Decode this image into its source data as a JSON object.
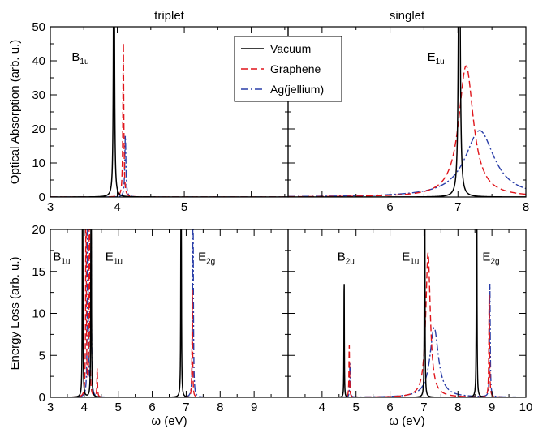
{
  "chart_data": [
    {
      "type": "line",
      "panel": "top-left",
      "title": "triplet",
      "ylabel": "Optical Absorption (arb. u.)",
      "xlim": [
        3,
        6.55
      ],
      "ylim": [
        0,
        50
      ],
      "xticks": [
        3,
        4,
        5
      ],
      "yticks": [
        0,
        10,
        20,
        30,
        40,
        50
      ],
      "annotations": [
        {
          "main": "B",
          "sub": "1u",
          "x": 3.32,
          "y": 40
        }
      ],
      "series": [
        {
          "name": "Vacuum",
          "peaks": [
            {
              "x0": 3.95,
              "amp": 120,
              "w": 0.007
            }
          ]
        },
        {
          "name": "Graphene",
          "peaks": [
            {
              "x0": 4.09,
              "amp": 46,
              "w": 0.008
            }
          ]
        },
        {
          "name": "Ag(jellium)",
          "peaks": [
            {
              "x0": 4.12,
              "amp": 18,
              "w": 0.01
            }
          ]
        }
      ]
    },
    {
      "type": "line",
      "panel": "top-right",
      "title": "singlet",
      "xlim": [
        4.5,
        8
      ],
      "ylim": [
        0,
        50
      ],
      "xticks": [
        6,
        7,
        8
      ],
      "yticks": [
        0,
        10,
        20,
        30,
        40,
        50
      ],
      "annotations": [
        {
          "main": "E",
          "sub": "1u",
          "x": 6.55,
          "y": 40
        }
      ],
      "series": [
        {
          "name": "Vacuum",
          "peaks": [
            {
              "x0": 7.02,
              "amp": 120,
              "w": 0.012
            }
          ]
        },
        {
          "name": "Graphene",
          "peaks": [
            {
              "x0": 7.12,
              "amp": 38.5,
              "w": 0.13
            }
          ]
        },
        {
          "name": "Ag(jellium)",
          "peaks": [
            {
              "x0": 7.32,
              "amp": 19.5,
              "w": 0.26
            }
          ]
        }
      ]
    },
    {
      "type": "line",
      "panel": "bottom-left",
      "ylabel": "Energy Loss (arb. u.)",
      "xlabel": "ω (eV)",
      "xlim": [
        3,
        10
      ],
      "ylim": [
        0,
        20
      ],
      "xticks": [
        3,
        4,
        5,
        6,
        7,
        8,
        9
      ],
      "yticks": [
        0,
        5,
        10,
        15,
        20
      ],
      "annotations": [
        {
          "main": "B",
          "sub": "1u",
          "x": 3.08,
          "y": 16.3
        },
        {
          "main": "E",
          "sub": "1u",
          "x": 4.62,
          "y": 16.3
        },
        {
          "main": "E",
          "sub": "2g",
          "x": 7.35,
          "y": 16.3
        }
      ],
      "series": [
        {
          "name": "Vacuum",
          "peaks": [
            {
              "x0": 3.95,
              "amp": 60,
              "w": 0.006
            },
            {
              "x0": 4.2,
              "amp": 60,
              "w": 0.006
            },
            {
              "x0": 6.85,
              "amp": 60,
              "w": 0.006
            }
          ]
        },
        {
          "name": "Graphene",
          "peaks": [
            {
              "x0": 4.05,
              "amp": 30,
              "w": 0.01
            },
            {
              "x0": 4.15,
              "amp": 30,
              "w": 0.01
            },
            {
              "x0": 4.38,
              "amp": 3.4,
              "w": 0.01
            },
            {
              "x0": 7.18,
              "amp": 13,
              "w": 0.01
            }
          ]
        },
        {
          "name": "Ag(jellium)",
          "peaks": [
            {
              "x0": 4.1,
              "amp": 28,
              "w": 0.012
            },
            {
              "x0": 4.2,
              "amp": 20,
              "w": 0.012
            },
            {
              "x0": 7.2,
              "amp": 25,
              "w": 0.012
            }
          ]
        }
      ]
    },
    {
      "type": "line",
      "panel": "bottom-right",
      "xlabel": "ω (eV)",
      "xlim": [
        3,
        10
      ],
      "ylim": [
        0,
        20
      ],
      "xticks": [
        4,
        5,
        6,
        7,
        8,
        9,
        10
      ],
      "yticks": [
        0,
        5,
        10,
        15,
        20
      ],
      "annotations": [
        {
          "main": "B",
          "sub": "2u",
          "x": 4.45,
          "y": 16.3
        },
        {
          "main": "E",
          "sub": "1u",
          "x": 6.35,
          "y": 16.3
        },
        {
          "main": "E",
          "sub": "2g",
          "x": 8.72,
          "y": 16.3
        }
      ],
      "series": [
        {
          "name": "Vacuum",
          "peaks": [
            {
              "x0": 4.65,
              "amp": 15,
              "w": 0.006
            },
            {
              "x0": 7.02,
              "amp": 60,
              "w": 0.006
            },
            {
              "x0": 8.55,
              "amp": 60,
              "w": 0.006
            }
          ]
        },
        {
          "name": "Graphene",
          "peaks": [
            {
              "x0": 4.8,
              "amp": 6.3,
              "w": 0.01
            },
            {
              "x0": 7.12,
              "amp": 17.2,
              "w": 0.08
            },
            {
              "x0": 8.92,
              "amp": 12.5,
              "w": 0.012
            }
          ]
        },
        {
          "name": "Ag(jellium)",
          "peaks": [
            {
              "x0": 4.82,
              "amp": 4,
              "w": 0.01
            },
            {
              "x0": 7.3,
              "amp": 8.3,
              "w": 0.15
            },
            {
              "x0": 8.94,
              "amp": 13.5,
              "w": 0.012
            }
          ]
        }
      ]
    }
  ],
  "legend": {
    "placement": "top-center",
    "items": [
      {
        "label": "Vacuum",
        "color": "#000000",
        "dash": "solid"
      },
      {
        "label": "Graphene",
        "color": "#e0141a",
        "dash": "dashed"
      },
      {
        "label": "Ag(jellium)",
        "color": "#2a3ea8",
        "dash": "dashdot"
      }
    ]
  }
}
